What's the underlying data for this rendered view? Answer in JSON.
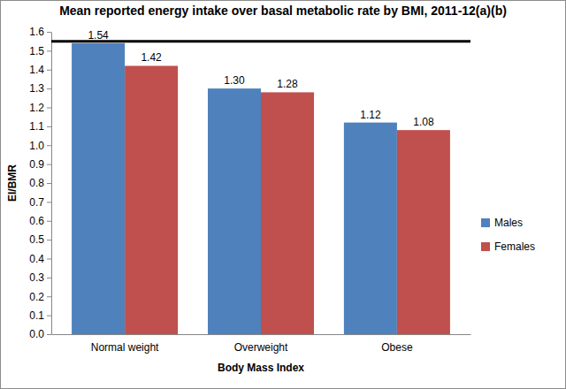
{
  "chart_data": {
    "type": "bar",
    "title": "Mean reported energy intake over basal metabolic rate by BMI, 2011-12(a)(b)",
    "x_label": "Body Mass Index",
    "y_label": "EI/BMR",
    "categories": [
      "Normal weight",
      "Overweight",
      "Obese"
    ],
    "series": [
      {
        "name": "Males",
        "color": "#4f81bd",
        "values": [
          1.54,
          1.3,
          1.12
        ],
        "value_labels": [
          "1.54",
          "1.30",
          "1.12"
        ]
      },
      {
        "name": "Females",
        "color": "#c0504d",
        "values": [
          1.42,
          1.28,
          1.08
        ],
        "value_labels": [
          "1.42",
          "1.28",
          "1.08"
        ]
      }
    ],
    "reference_line": 1.55,
    "ylim": [
      0,
      1.6
    ],
    "yticks": [
      {
        "value": 0,
        "label": "0.0"
      },
      0.1,
      0.2,
      0.3,
      0.4,
      0.5,
      0.6,
      0.7,
      0.8,
      0.9,
      {
        "value": 1,
        "label": "1.0"
      },
      1.1,
      1.2,
      1.3,
      1.4,
      1.5,
      1.6
    ],
    "grid": false,
    "legend": "right",
    "data_labels": true
  }
}
